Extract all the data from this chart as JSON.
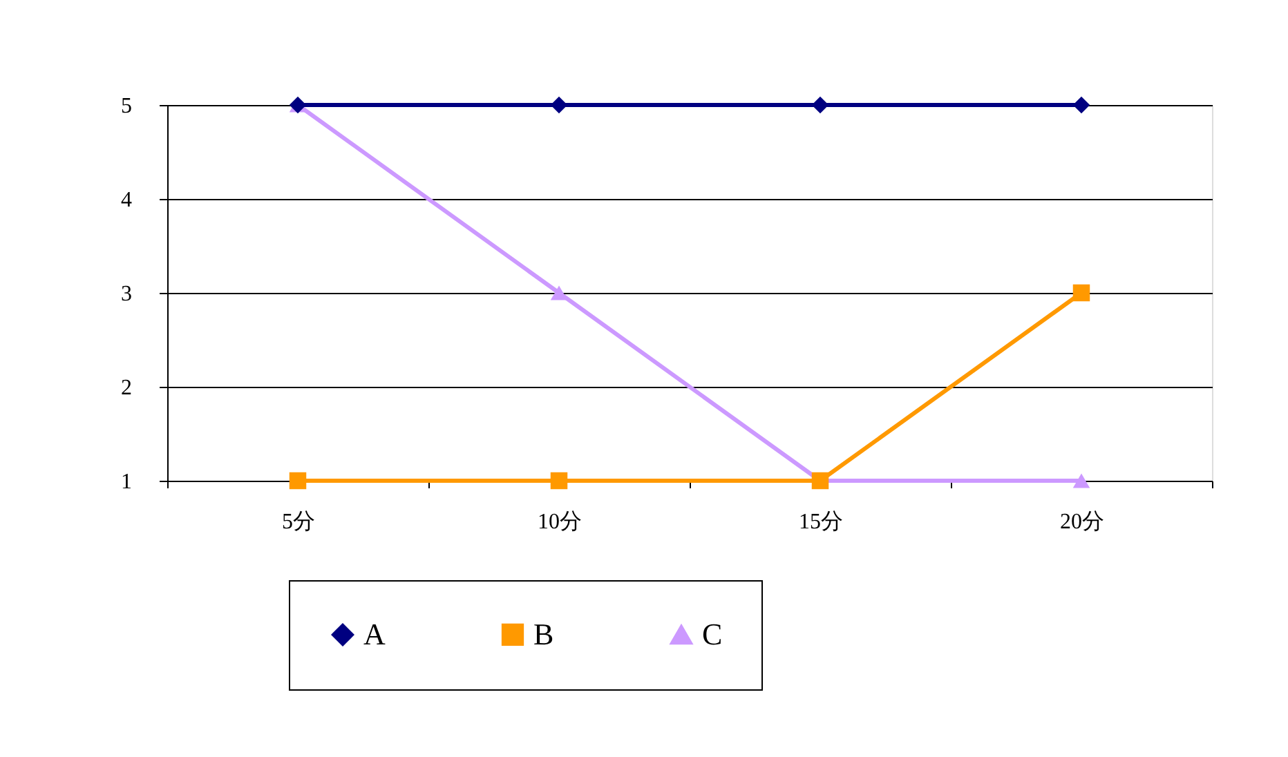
{
  "chart_data": {
    "type": "line",
    "categories": [
      "5分",
      "10分",
      "15分",
      "20分"
    ],
    "series": [
      {
        "name": "A",
        "color": "#000080",
        "values": [
          5,
          5,
          5,
          5
        ],
        "marker": "diamond"
      },
      {
        "name": "B",
        "color": "#ff9900",
        "values": [
          1,
          1,
          1,
          3
        ],
        "marker": "square"
      },
      {
        "name": "C",
        "color": "#cc99ff",
        "values": [
          5,
          3,
          1,
          1
        ],
        "marker": "triangle"
      }
    ],
    "ylim": [
      1,
      5
    ],
    "yticks": [
      1,
      2,
      3,
      4,
      5
    ],
    "grid": "y",
    "legend": "bottom",
    "line_style": "solid"
  }
}
